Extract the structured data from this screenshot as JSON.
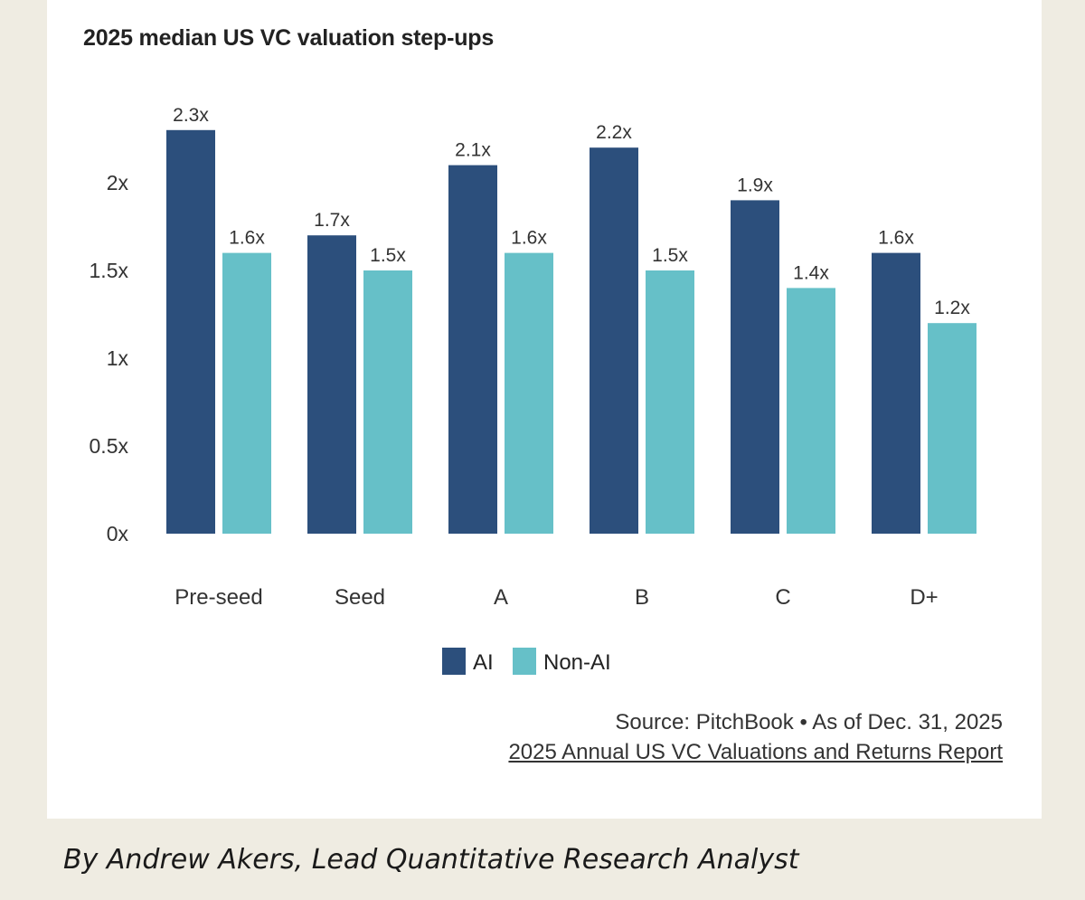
{
  "byline": "By Andrew Akers, Lead Quantitative Research Analyst",
  "source": {
    "text": "Source: PitchBook • As of Dec. 31, 2025",
    "report_link": "2025 Annual US VC Valuations and Returns Report"
  },
  "colors": {
    "ai": "#2c4f7c",
    "non_ai": "#66c0c8",
    "axis_text": "#333333",
    "background": "#efece2"
  },
  "chart_data": {
    "type": "bar",
    "title": "2025 median US VC valuation step-ups",
    "categories": [
      "Pre-seed",
      "Seed",
      "A",
      "B",
      "C",
      "D+"
    ],
    "series": [
      {
        "name": "AI",
        "values": [
          2.3,
          1.7,
          2.1,
          2.2,
          1.9,
          1.6
        ],
        "labels": [
          "2.3x",
          "1.7x",
          "2.1x",
          "2.2x",
          "1.9x",
          "1.6x"
        ]
      },
      {
        "name": "Non-AI",
        "values": [
          1.6,
          1.5,
          1.6,
          1.5,
          1.4,
          1.2
        ],
        "labels": [
          "1.6x",
          "1.5x",
          "1.6x",
          "1.5x",
          "1.4x",
          "1.2x"
        ]
      }
    ],
    "yticks": [
      0,
      0.5,
      1,
      1.5,
      2
    ],
    "ytick_labels": [
      "0x",
      "0.5x",
      "1x",
      "1.5x",
      "2x"
    ],
    "ylim": [
      0,
      2.3
    ],
    "grid": false,
    "legend": "bottom-center"
  }
}
